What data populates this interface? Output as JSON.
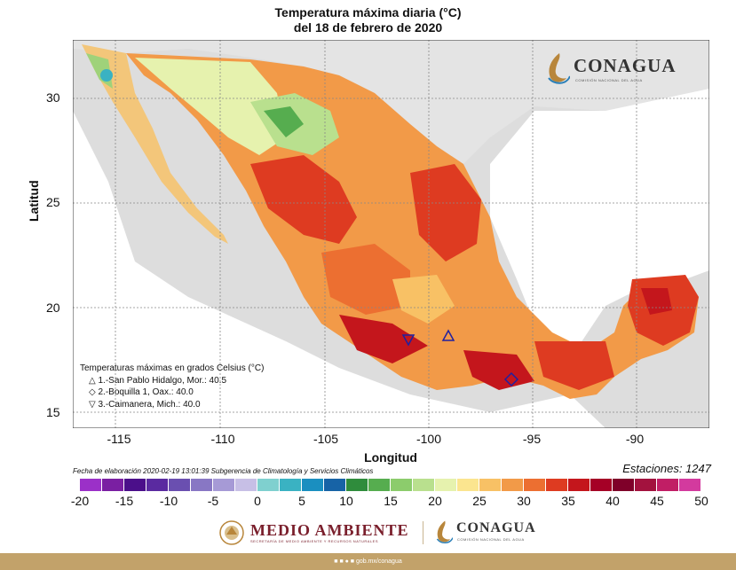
{
  "title_line1": "Temperatura máxima diaria (°C)",
  "title_line2": "del 18 de febrero de 2020",
  "axes": {
    "xlabel": "Longitud",
    "ylabel": "Latitud",
    "x_ticks": [
      "-115",
      "-110",
      "-105",
      "-100",
      "-95",
      "-90"
    ],
    "y_ticks": [
      "30",
      "25",
      "20",
      "15"
    ]
  },
  "meta_line": "Fecha de elaboración 2020-02-19 13:01:39 Subgerencia de Climatología y Servicios Climáticos",
  "stations": "Estaciones:  1247",
  "legend": {
    "title": "Temperaturas máximas en grados Celsius (°C)",
    "items": [
      {
        "symbol": "△",
        "text": "1.-San Pablo Hidalgo, Mor.: 40.5"
      },
      {
        "symbol": "◇",
        "text": "2.-Boquilla 1, Oax.: 40.0"
      },
      {
        "symbol": "▽",
        "text": "3.-Caimanera, Mich.: 40.0"
      }
    ]
  },
  "colorbar": {
    "ticks": [
      "-20",
      "-15",
      "-10",
      "-5",
      "0",
      "5",
      "10",
      "15",
      "20",
      "25",
      "30",
      "35",
      "40",
      "45",
      "50"
    ],
    "colors": [
      "#9b30c8",
      "#7a1fa2",
      "#4b0f8a",
      "#5a2aa0",
      "#6a4fb0",
      "#8877c4",
      "#a69ad6",
      "#c7bfe6",
      "#7fd0cf",
      "#3ab2c2",
      "#1a8fc0",
      "#1763a6",
      "#2f8c3c",
      "#56ad4f",
      "#8ccc6c",
      "#b9e08e",
      "#e6f2ae",
      "#fbe58f",
      "#f8c165",
      "#f29a48",
      "#ec6f31",
      "#de3b21",
      "#c4161c",
      "#a50026",
      "#7f0029",
      "#a3123e",
      "#c11e65",
      "#d33a9e"
    ]
  },
  "logos": {
    "conagua_top": "CONAGUA",
    "conagua_top_sub": "COMISIÓN NACIONAL DEL AGUA",
    "medio_ambiente": "MEDIO AMBIENTE",
    "medio_ambiente_sub": "SECRETARÍA DE MEDIO AMBIENTE Y RECURSOS NATURALES",
    "conagua_bottom": "CONAGUA",
    "conagua_bottom_sub": "COMISIÓN NACIONAL DEL AGUA"
  },
  "footer": "gob.mx/conagua"
}
